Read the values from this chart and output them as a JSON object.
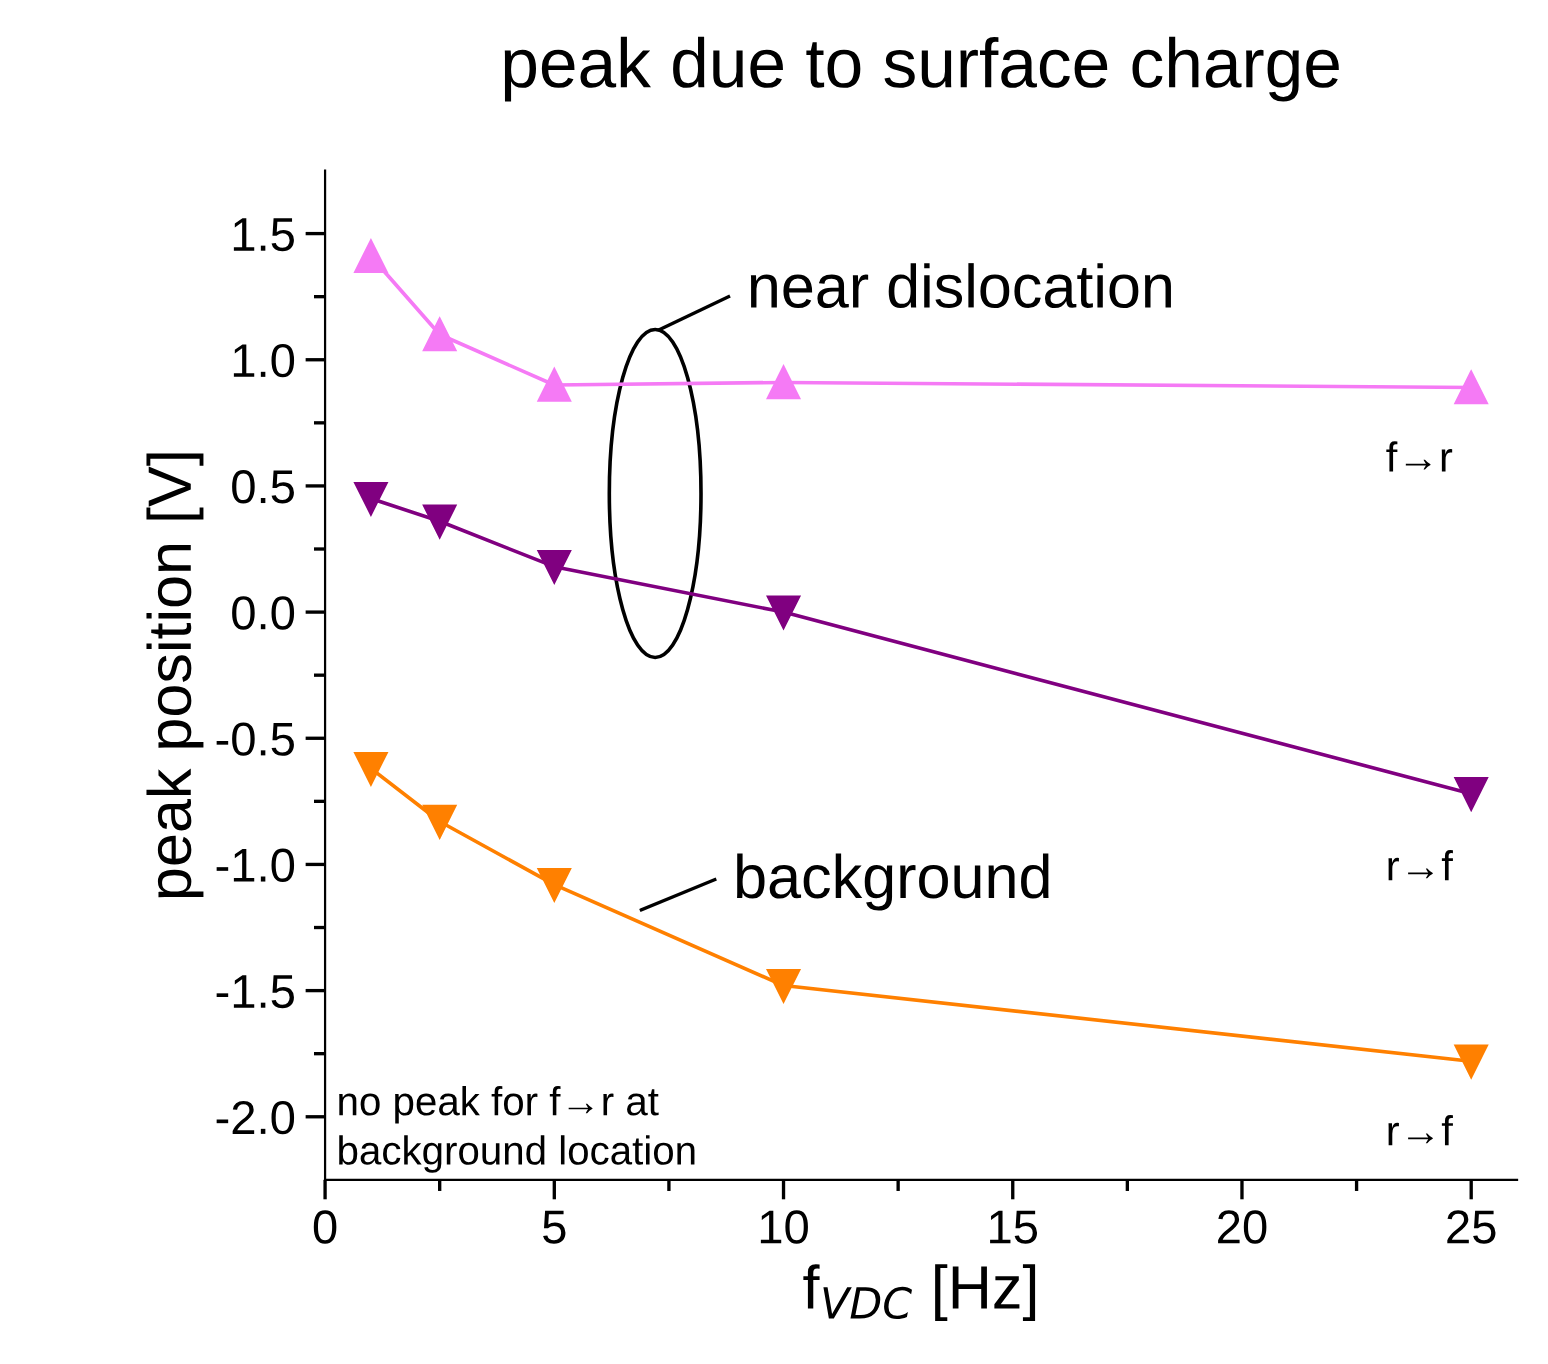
{
  "chart_data": {
    "type": "line",
    "title": "peak due to surface charge",
    "xlabel": "f$_{VDC}$ [Hz]",
    "ylabel": "peak position [V]",
    "x": [
      1,
      2.5,
      5,
      10,
      25
    ],
    "series": [
      {
        "color": "#f57af5",
        "marker": "triangle",
        "values": [
          1.41,
          1.1,
          0.9,
          0.91,
          0.89
        ]
      },
      {
        "color": "#800080",
        "marker": "triangle-down",
        "values": [
          0.45,
          0.36,
          0.18,
          0.0,
          -0.72
        ]
      },
      {
        "color": "#ff8000",
        "marker": "triangle-down",
        "values": [
          -0.62,
          -0.83,
          -1.08,
          -1.48,
          -1.78
        ]
      }
    ],
    "xlim": [
      0,
      26
    ],
    "xticks": [
      0,
      5,
      10,
      15,
      20,
      25
    ],
    "ylim": [
      -2.25,
      1.75
    ],
    "yticks": [
      {
        "value": -2,
        "label": "-2.0"
      },
      -1.5,
      {
        "value": -1,
        "label": "-1.0"
      },
      -0.5,
      {
        "value": 0,
        "label": "0.0"
      },
      0.5,
      {
        "value": 1,
        "label": "1.0"
      },
      1.5
    ],
    "grid": false,
    "legend": false,
    "line_style": "solid",
    "annotations": [
      "f→r",
      "r→f",
      "r→f",
      "near dislocation",
      "background",
      "no peak for f→r at\nbackground location"
    ]
  }
}
